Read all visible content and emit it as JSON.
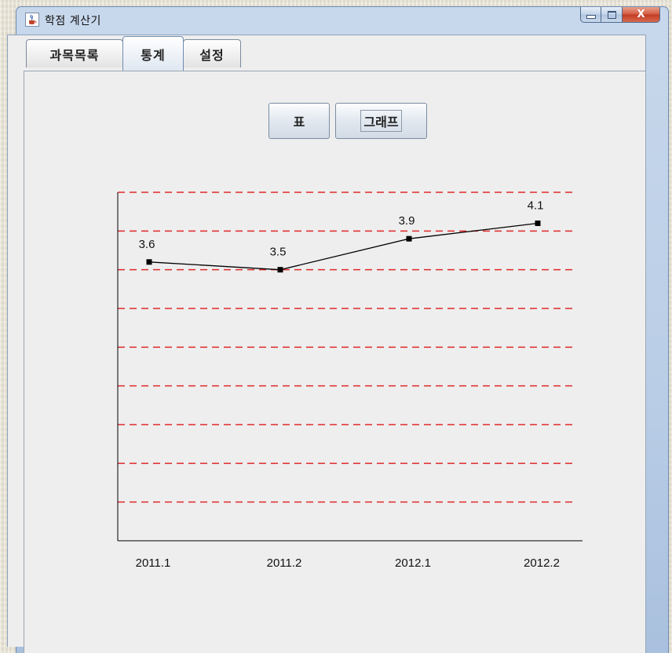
{
  "window": {
    "title": "학점 계산기",
    "close_symbol": "X"
  },
  "tabs": [
    {
      "label": "과목목록",
      "active": false
    },
    {
      "label": "통계",
      "active": true
    },
    {
      "label": "설정",
      "active": false
    }
  ],
  "buttons": {
    "table_label": "표",
    "graph_label": "그래프"
  },
  "chart_data": {
    "type": "line",
    "categories": [
      "2011.1",
      "2011.2",
      "2012.1",
      "2012.2"
    ],
    "series": [
      {
        "values": [
          3.6,
          3.5,
          3.9,
          4.1
        ],
        "color": "#000000"
      }
    ],
    "data_labels": [
      "3.6",
      "3.5",
      "3.9",
      "4.1"
    ],
    "ylim": [
      0,
      4.5
    ],
    "gridline_values": [
      0.5,
      1.0,
      1.5,
      2.0,
      2.5,
      3.0,
      3.5,
      4.0,
      4.5
    ],
    "grid": true,
    "grid_color": "#e0282a",
    "grid_style": "dashed"
  }
}
